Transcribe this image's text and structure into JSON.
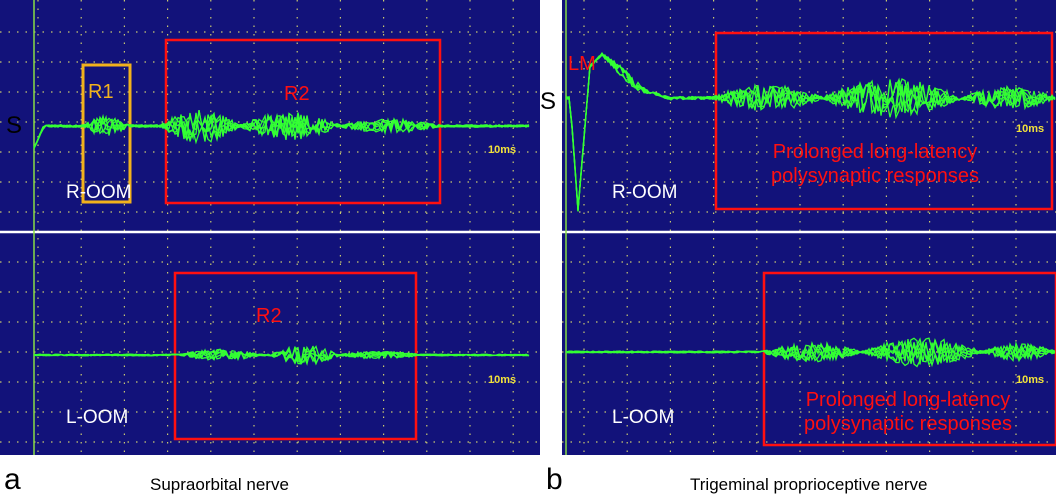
{
  "panel_a": {
    "letter": "a",
    "caption": "Supraorbital nerve",
    "side_mark": "S",
    "time_scale": "10ms",
    "top_trace_label": "R-OOM",
    "bottom_trace_label": "L-OOM",
    "r1_label": "R1",
    "r2_top_label": "R2",
    "r2_bottom_label": "R2"
  },
  "panel_b": {
    "letter": "b",
    "caption": "Trigeminal proprioceptive nerve",
    "side_mark": "S",
    "time_scale": "10ms",
    "lm_label": "LM",
    "top_trace_label": "R-OOM",
    "bottom_trace_label": "L-OOM",
    "top_box_text": [
      "Prolonged long-latency",
      "polysynaptic responses"
    ],
    "bottom_box_text": [
      "Prolonged long-latency",
      "polysynaptic responses"
    ]
  },
  "colors": {
    "background": "#12127a",
    "trace": "#33ff33",
    "grid": "#c8c870",
    "box_red": "#ff1010",
    "box_orange": "#f2b21c",
    "divider": "#ffffff"
  }
}
